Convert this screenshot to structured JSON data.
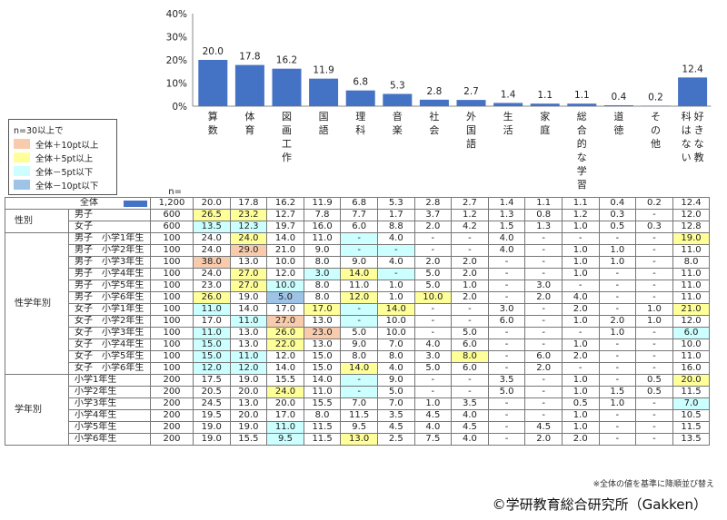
{
  "chart_data": {
    "type": "bar",
    "categories": [
      "算数",
      "体育",
      "図画工作",
      "国語",
      "理科",
      "音楽",
      "社会",
      "外国語",
      "生活",
      "家庭",
      "総合的な学習",
      "道徳",
      "その他",
      "好きな教科はない"
    ],
    "values": [
      20.0,
      17.8,
      16.2,
      11.9,
      6.8,
      5.3,
      2.8,
      2.7,
      1.4,
      1.1,
      1.1,
      0.4,
      0.2,
      12.4
    ],
    "value_labels": [
      "20.0",
      "17.8",
      "16.2",
      "11.9",
      "6.8",
      "5.3",
      "2.8",
      "2.7",
      "1.4",
      "1.1",
      "1.1",
      "0.4",
      "0.2",
      "12.4"
    ],
    "yticks": [
      "40%",
      "30%",
      "20%",
      "10%",
      "0%"
    ],
    "ylim": [
      0,
      40
    ],
    "bar_color": "#4472C4"
  },
  "legend": {
    "title": "n=30以上で",
    "items": [
      {
        "label": "全体＋10pt以上",
        "color": "#F8CBAD"
      },
      {
        "label": "全体＋5pt以上",
        "color": "#FFFF99"
      },
      {
        "label": "全体－5pt以下",
        "color": "#CCFFFF"
      },
      {
        "label": "全体－10pt以下",
        "color": "#9DC3E6"
      }
    ]
  },
  "n_header": "n=",
  "total_row": {
    "label": "全体",
    "n": "1,200",
    "values": [
      "20.0",
      "17.8",
      "16.2",
      "11.9",
      "6.8",
      "5.3",
      "2.8",
      "2.7",
      "1.4",
      "1.1",
      "1.1",
      "0.4",
      "0.2",
      "12.4"
    ]
  },
  "groups": [
    {
      "label": "性別",
      "rows": [
        {
          "label": "男子",
          "n": "600",
          "values": [
            "26.5",
            "23.2",
            "12.7",
            "7.8",
            "7.7",
            "1.7",
            "3.7",
            "1.2",
            "1.3",
            "0.8",
            "1.2",
            "0.3",
            "-",
            "12.0"
          ],
          "hl": [
            "y",
            "y",
            "",
            "",
            "",
            "",
            "",
            "",
            "",
            "",
            "",
            "",
            "",
            ""
          ]
        },
        {
          "label": "女子",
          "n": "600",
          "values": [
            "13.5",
            "12.3",
            "19.7",
            "16.0",
            "6.0",
            "8.8",
            "2.0",
            "4.2",
            "1.5",
            "1.3",
            "1.0",
            "0.5",
            "0.3",
            "12.8"
          ],
          "hl": [
            "c",
            "c",
            "",
            "",
            "",
            "",
            "",
            "",
            "",
            "",
            "",
            "",
            "",
            ""
          ]
        }
      ]
    },
    {
      "label": "性学年別",
      "rows": [
        {
          "label": "男子　小学1年生",
          "n": "100",
          "values": [
            "24.0",
            "24.0",
            "14.0",
            "11.0",
            "-",
            "4.0",
            "-",
            "-",
            "4.0",
            "-",
            "-",
            "-",
            "-",
            "19.0"
          ],
          "hl": [
            "",
            "y",
            "",
            "",
            "c",
            "",
            "",
            "",
            "",
            "",
            "",
            "",
            "",
            "y"
          ]
        },
        {
          "label": "男子　小学2年生",
          "n": "100",
          "values": [
            "24.0",
            "29.0",
            "21.0",
            "9.0",
            "-",
            "-",
            "-",
            "-",
            "4.0",
            "-",
            "1.0",
            "1.0",
            "-",
            "11.0"
          ],
          "hl": [
            "",
            "o",
            "",
            "",
            "c",
            "c",
            "",
            "",
            "",
            "",
            "",
            "",
            "",
            ""
          ]
        },
        {
          "label": "男子　小学3年生",
          "n": "100",
          "values": [
            "38.0",
            "13.0",
            "10.0",
            "8.0",
            "9.0",
            "4.0",
            "2.0",
            "2.0",
            "-",
            "-",
            "1.0",
            "1.0",
            "-",
            "8.0"
          ],
          "hl": [
            "o",
            "",
            "",
            "",
            "",
            "",
            "",
            "",
            "",
            "",
            "",
            "",
            "",
            ""
          ]
        },
        {
          "label": "男子　小学4年生",
          "n": "100",
          "values": [
            "24.0",
            "27.0",
            "12.0",
            "3.0",
            "14.0",
            "-",
            "5.0",
            "2.0",
            "-",
            "-",
            "1.0",
            "-",
            "-",
            "11.0"
          ],
          "hl": [
            "",
            "y",
            "",
            "c",
            "y",
            "c",
            "",
            "",
            "",
            "",
            "",
            "",
            "",
            ""
          ]
        },
        {
          "label": "男子　小学5年生",
          "n": "100",
          "values": [
            "23.0",
            "27.0",
            "10.0",
            "8.0",
            "11.0",
            "1.0",
            "5.0",
            "1.0",
            "-",
            "3.0",
            "-",
            "-",
            "-",
            "11.0"
          ],
          "hl": [
            "",
            "y",
            "c",
            "",
            "",
            "",
            "",
            "",
            "",
            "",
            "",
            "",
            "",
            ""
          ]
        },
        {
          "label": "男子　小学6年生",
          "n": "100",
          "values": [
            "26.0",
            "19.0",
            "5.0",
            "8.0",
            "12.0",
            "1.0",
            "10.0",
            "2.0",
            "-",
            "2.0",
            "4.0",
            "-",
            "-",
            "11.0"
          ],
          "hl": [
            "y",
            "",
            "b",
            "",
            "y",
            "",
            "y",
            "",
            "",
            "",
            "",
            "",
            "",
            ""
          ]
        },
        {
          "label": "女子　小学1年生",
          "n": "100",
          "values": [
            "11.0",
            "14.0",
            "17.0",
            "17.0",
            "-",
            "14.0",
            "-",
            "-",
            "3.0",
            "-",
            "2.0",
            "-",
            "1.0",
            "21.0"
          ],
          "hl": [
            "c",
            "",
            "",
            "y",
            "c",
            "y",
            "",
            "",
            "",
            "",
            "",
            "",
            "",
            "y"
          ]
        },
        {
          "label": "女子　小学2年生",
          "n": "100",
          "values": [
            "17.0",
            "11.0",
            "27.0",
            "13.0",
            "-",
            "10.0",
            "-",
            "-",
            "6.0",
            "-",
            "1.0",
            "2.0",
            "1.0",
            "12.0"
          ],
          "hl": [
            "",
            "c",
            "o",
            "",
            "c",
            "",
            "",
            "",
            "",
            "",
            "",
            "",
            "",
            ""
          ]
        },
        {
          "label": "女子　小学3年生",
          "n": "100",
          "values": [
            "11.0",
            "13.0",
            "26.0",
            "23.0",
            "5.0",
            "10.0",
            "-",
            "5.0",
            "-",
            "-",
            "-",
            "1.0",
            "-",
            "6.0"
          ],
          "hl": [
            "c",
            "",
            "y",
            "o",
            "",
            "",
            "",
            "",
            "",
            "",
            "",
            "",
            "",
            "c"
          ]
        },
        {
          "label": "女子　小学4年生",
          "n": "100",
          "values": [
            "15.0",
            "13.0",
            "22.0",
            "13.0",
            "9.0",
            "7.0",
            "4.0",
            "6.0",
            "-",
            "-",
            "1.0",
            "-",
            "-",
            "10.0"
          ],
          "hl": [
            "c",
            "",
            "y",
            "",
            "",
            "",
            "",
            "",
            "",
            "",
            "",
            "",
            "",
            ""
          ]
        },
        {
          "label": "女子　小学5年生",
          "n": "100",
          "values": [
            "15.0",
            "11.0",
            "12.0",
            "15.0",
            "8.0",
            "8.0",
            "3.0",
            "8.0",
            "-",
            "6.0",
            "2.0",
            "-",
            "-",
            "11.0"
          ],
          "hl": [
            "c",
            "c",
            "",
            "",
            "",
            "",
            "",
            "y",
            "",
            "",
            "",
            "",
            "",
            ""
          ]
        },
        {
          "label": "女子　小学6年生",
          "n": "100",
          "values": [
            "12.0",
            "12.0",
            "14.0",
            "15.0",
            "14.0",
            "4.0",
            "5.0",
            "6.0",
            "-",
            "2.0",
            "-",
            "-",
            "-",
            "16.0"
          ],
          "hl": [
            "c",
            "c",
            "",
            "",
            "y",
            "",
            "",
            "",
            "",
            "",
            "",
            "",
            "",
            ""
          ]
        }
      ]
    },
    {
      "label": "学年別",
      "rows": [
        {
          "label": "小学1年生",
          "n": "200",
          "values": [
            "17.5",
            "19.0",
            "15.5",
            "14.0",
            "-",
            "9.0",
            "-",
            "-",
            "3.5",
            "-",
            "1.0",
            "-",
            "0.5",
            "20.0"
          ],
          "hl": [
            "",
            "",
            "",
            "",
            "c",
            "",
            "",
            "",
            "",
            "",
            "",
            "",
            "",
            "y"
          ]
        },
        {
          "label": "小学2年生",
          "n": "200",
          "values": [
            "20.5",
            "20.0",
            "24.0",
            "11.0",
            "-",
            "5.0",
            "-",
            "-",
            "5.0",
            "-",
            "1.0",
            "1.5",
            "0.5",
            "11.5"
          ],
          "hl": [
            "",
            "",
            "y",
            "",
            "c",
            "",
            "",
            "",
            "",
            "",
            "",
            "",
            "",
            ""
          ]
        },
        {
          "label": "小学3年生",
          "n": "200",
          "values": [
            "24.5",
            "13.0",
            "20.0",
            "15.5",
            "7.0",
            "7.0",
            "1.0",
            "3.5",
            "-",
            "-",
            "0.5",
            "1.0",
            "-",
            "7.0"
          ],
          "hl": [
            "",
            "",
            "",
            "",
            "",
            "",
            "",
            "",
            "",
            "",
            "",
            "",
            "",
            "c"
          ]
        },
        {
          "label": "小学4年生",
          "n": "200",
          "values": [
            "19.5",
            "20.0",
            "17.0",
            "8.0",
            "11.5",
            "3.5",
            "4.5",
            "4.0",
            "-",
            "-",
            "1.0",
            "-",
            "-",
            "10.5"
          ],
          "hl": [
            "",
            "",
            "",
            "",
            "",
            "",
            "",
            "",
            "",
            "",
            "",
            "",
            "",
            ""
          ]
        },
        {
          "label": "小学5年生",
          "n": "200",
          "values": [
            "19.0",
            "19.0",
            "11.0",
            "11.5",
            "9.5",
            "4.5",
            "4.0",
            "4.5",
            "-",
            "4.5",
            "1.0",
            "-",
            "-",
            "11.5"
          ],
          "hl": [
            "",
            "",
            "c",
            "",
            "",
            "",
            "",
            "",
            "",
            "",
            "",
            "",
            "",
            ""
          ]
        },
        {
          "label": "小学6年生",
          "n": "200",
          "values": [
            "19.0",
            "15.5",
            "9.5",
            "11.5",
            "13.0",
            "2.5",
            "7.5",
            "4.0",
            "-",
            "2.0",
            "2.0",
            "-",
            "-",
            "13.5"
          ],
          "hl": [
            "",
            "",
            "c",
            "",
            "y",
            "",
            "",
            "",
            "",
            "",
            "",
            "",
            "",
            ""
          ]
        }
      ]
    }
  ],
  "footnote": "※全体の値を基準に降順並び替え",
  "copyright": "©学研教育総合研究所（Gakken）"
}
